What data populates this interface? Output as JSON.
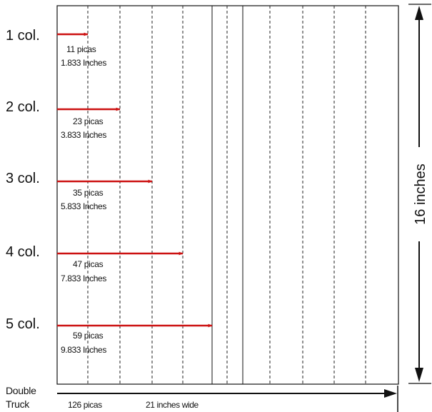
{
  "colors": {
    "arrow": "#cc1111",
    "line": "#111111",
    "guide": "#222222"
  },
  "columns": [
    {
      "label": "1 col.",
      "picas": "11 picas",
      "inches": "1.833 Inches"
    },
    {
      "label": "2 col.",
      "picas": "23 picas",
      "inches": "3.833 Inches"
    },
    {
      "label": "3 col.",
      "picas": "35 picas",
      "inches": "5.833 Inches"
    },
    {
      "label": "4 col.",
      "picas": "47 picas",
      "inches": "7.833 Inches"
    },
    {
      "label": "5 col.",
      "picas": "59 picas",
      "inches": "9.833 Inches"
    }
  ],
  "height_label": "16 inches",
  "double_truck": {
    "line1": "Double",
    "line2": "Truck",
    "picas": "126 picas",
    "width": "21 inches wide"
  }
}
